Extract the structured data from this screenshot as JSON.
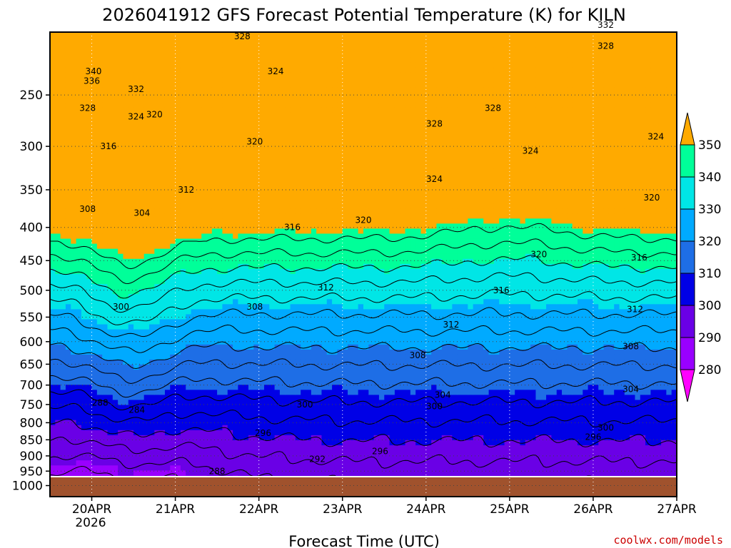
{
  "chart_data": {
    "type": "heatmap",
    "title": "2026041912 GFS Forecast Potential Temperature (K) for KILN",
    "xlabel": "Forecast Time (UTC)",
    "ylabel": "",
    "credit": "coolwx.com/models",
    "units": "K",
    "x_ticks": [
      "20APR",
      "21APR",
      "22APR",
      "23APR",
      "24APR",
      "25APR",
      "26APR",
      "27APR"
    ],
    "x_tick_positions": [
      0.5,
      1.5,
      2.5,
      3.5,
      4.5,
      5.5,
      6.5,
      7.5
    ],
    "x_year_label": "2026",
    "xlim": [
      0.0,
      7.5
    ],
    "y_ticks": [
      250,
      300,
      350,
      400,
      450,
      500,
      550,
      600,
      650,
      700,
      750,
      800,
      850,
      900,
      950,
      1000
    ],
    "ylim": [
      1000,
      200
    ],
    "y_scale": "log-pressure (hPa)",
    "colorbar": {
      "levels": [
        280,
        290,
        300,
        310,
        320,
        330,
        340,
        350
      ],
      "labels": [
        "280",
        "290",
        "300",
        "310",
        "320",
        "330",
        "340",
        "350"
      ],
      "colors": [
        "#ff00ff",
        "#9900ff",
        "#6a00e6",
        "#0000e6",
        "#1e6ee6",
        "#00aaff",
        "#00e6e6",
        "#00ff99",
        "#55e600",
        "#ffff00",
        "#ffaa00"
      ]
    },
    "ground_color": "#a0522d",
    "contour_interval": 4,
    "contour_labels": [
      {
        "t": "340",
        "x": 0.52,
        "p": 230
      },
      {
        "t": "336",
        "x": 0.5,
        "p": 238
      },
      {
        "t": "332",
        "x": 1.03,
        "p": 245
      },
      {
        "t": "328",
        "x": 0.45,
        "p": 262
      },
      {
        "t": "324",
        "x": 1.03,
        "p": 270
      },
      {
        "t": "320",
        "x": 1.25,
        "p": 268
      },
      {
        "t": "316",
        "x": 0.7,
        "p": 300
      },
      {
        "t": "308",
        "x": 0.45,
        "p": 375
      },
      {
        "t": "304",
        "x": 1.1,
        "p": 380
      },
      {
        "t": "312",
        "x": 1.63,
        "p": 350
      },
      {
        "t": "328",
        "x": 2.3,
        "p": 203
      },
      {
        "t": "324",
        "x": 2.7,
        "p": 230
      },
      {
        "t": "320",
        "x": 2.45,
        "p": 295
      },
      {
        "t": "316",
        "x": 2.9,
        "p": 400
      },
      {
        "t": "320",
        "x": 3.75,
        "p": 390
      },
      {
        "t": "312",
        "x": 3.3,
        "p": 495
      },
      {
        "t": "308",
        "x": 2.45,
        "p": 530
      },
      {
        "t": "300",
        "x": 0.85,
        "p": 530
      },
      {
        "t": "328",
        "x": 4.6,
        "p": 277
      },
      {
        "t": "328",
        "x": 5.3,
        "p": 262
      },
      {
        "t": "324",
        "x": 4.6,
        "p": 337
      },
      {
        "t": "324",
        "x": 5.75,
        "p": 305
      },
      {
        "t": "316",
        "x": 5.4,
        "p": 500
      },
      {
        "t": "312",
        "x": 4.8,
        "p": 565
      },
      {
        "t": "320",
        "x": 5.85,
        "p": 440
      },
      {
        "t": "308",
        "x": 4.4,
        "p": 630
      },
      {
        "t": "304",
        "x": 4.7,
        "p": 725
      },
      {
        "t": "300",
        "x": 4.6,
        "p": 755
      },
      {
        "t": "300",
        "x": 3.05,
        "p": 750
      },
      {
        "t": "296",
        "x": 2.55,
        "p": 830
      },
      {
        "t": "296",
        "x": 3.95,
        "p": 885
      },
      {
        "t": "292",
        "x": 3.2,
        "p": 910
      },
      {
        "t": "288",
        "x": 0.6,
        "p": 745
      },
      {
        "t": "284",
        "x": 1.04,
        "p": 765
      },
      {
        "t": "288",
        "x": 2.0,
        "p": 950
      },
      {
        "t": "332",
        "x": 6.65,
        "p": 195
      },
      {
        "t": "328",
        "x": 6.65,
        "p": 210
      },
      {
        "t": "324",
        "x": 7.25,
        "p": 290
      },
      {
        "t": "320",
        "x": 7.2,
        "p": 360
      },
      {
        "t": "316",
        "x": 7.05,
        "p": 445
      },
      {
        "t": "312",
        "x": 7.0,
        "p": 535
      },
      {
        "t": "308",
        "x": 6.95,
        "p": 610
      },
      {
        "t": "304",
        "x": 6.95,
        "p": 710
      },
      {
        "t": "300",
        "x": 6.65,
        "p": 815
      },
      {
        "t": "296",
        "x": 6.5,
        "p": 842
      }
    ]
  }
}
